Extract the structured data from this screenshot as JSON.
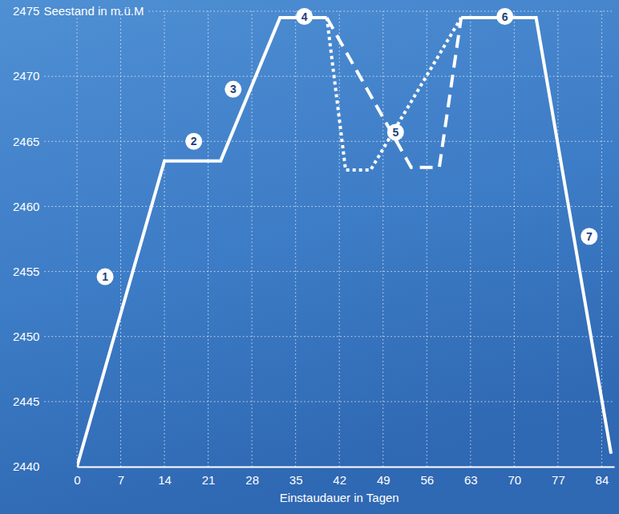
{
  "chart_data": {
    "type": "line",
    "y_label": "Seestand in m.ü.M",
    "x_label": "Einstaudauer in Tagen",
    "xlim": [
      0,
      86
    ],
    "ylim": [
      2440,
      2475
    ],
    "xticks": [
      0,
      7,
      14,
      21,
      28,
      35,
      42,
      49,
      56,
      63,
      70,
      77,
      84
    ],
    "yticks": [
      2440,
      2445,
      2450,
      2455,
      2460,
      2465,
      2470,
      2475
    ],
    "grid": true,
    "series": [
      {
        "color": "#ffffff",
        "line_style": "solid",
        "x": [
          0,
          14,
          23,
          32.5,
          40,
          50,
          61.5,
          73.5,
          85.5
        ],
        "values": [
          2440,
          2463.5,
          2463.5,
          2474.5,
          2474.5,
          null,
          2474.5,
          2474.5,
          2441
        ]
      },
      {
        "color": "#ffffff",
        "line_style": "dashed",
        "x": [
          40,
          53.5,
          58,
          61.5
        ],
        "values": [
          2474.5,
          2463,
          2463,
          2474.5
        ]
      },
      {
        "color": "#ffffff",
        "line_style": "dotted",
        "x": [
          40,
          43,
          47,
          61.5
        ],
        "values": [
          2474.5,
          2462.8,
          2462.8,
          2474.5
        ]
      }
    ],
    "annotations": [
      {
        "text": "1",
        "x": 4.5,
        "y": 2454.6
      },
      {
        "text": "2",
        "x": 18.7,
        "y": 2465
      },
      {
        "text": "3",
        "x": 25,
        "y": 2469
      },
      {
        "text": "4",
        "x": 36.4,
        "y": 2474.6
      },
      {
        "text": "5",
        "x": 51,
        "y": 2465.7
      },
      {
        "text": "6",
        "x": 68.5,
        "y": 2474.6
      },
      {
        "text": "7",
        "x": 82,
        "y": 2457.7
      }
    ]
  }
}
